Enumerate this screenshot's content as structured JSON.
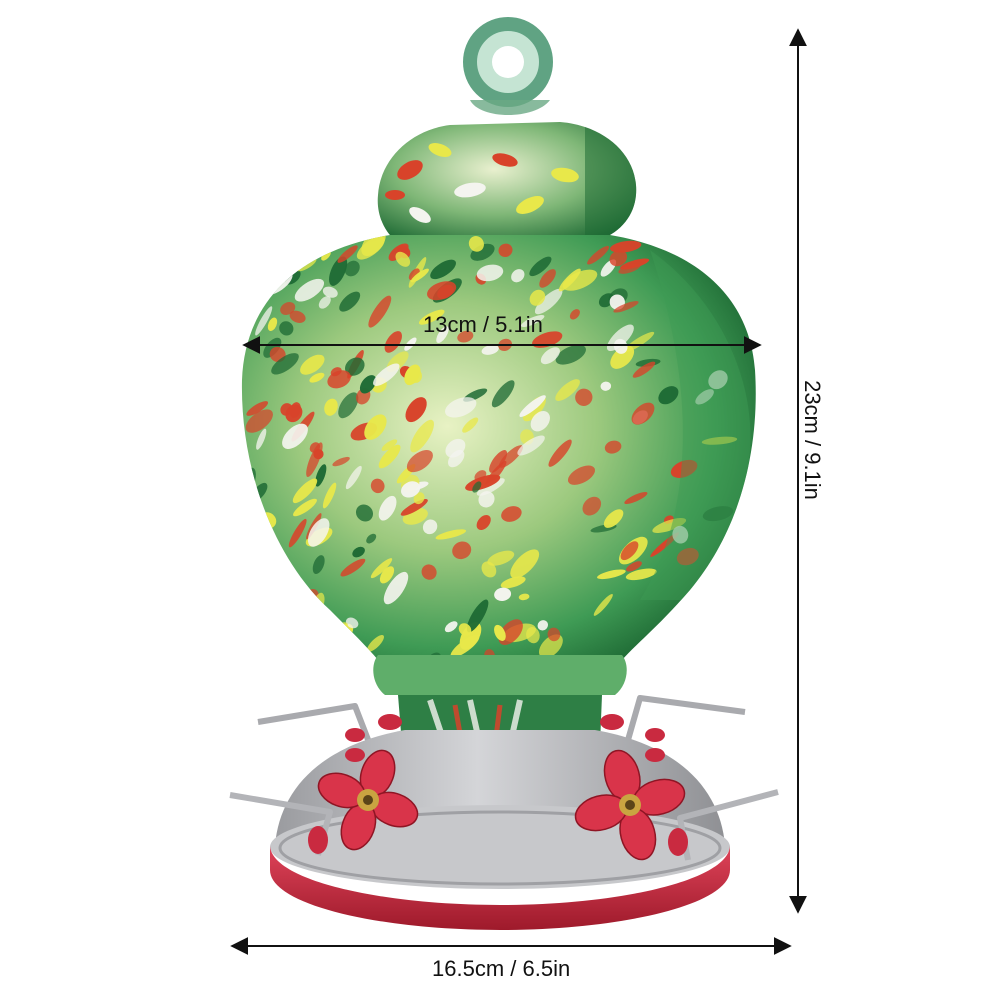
{
  "image": {
    "subject": "hummingbird-feeder",
    "colors": {
      "background": "#ffffff",
      "glass_green": "#3f9b55",
      "glass_dark_green": "#1f6b35",
      "speckle_red": "#d8432a",
      "speckle_yellow": "#e8e84a",
      "speckle_white": "#f4f4ef",
      "base_silver": "#b9babd",
      "base_red": "#c8283a",
      "flower_red": "#d9344a",
      "flower_gold": "#c9a441",
      "arrow": "#111111"
    }
  },
  "dimensions": {
    "width_label": "13cm / 5.1in",
    "height_label": "23cm / 9.1in",
    "base_label": "16.5cm / 6.5in"
  }
}
